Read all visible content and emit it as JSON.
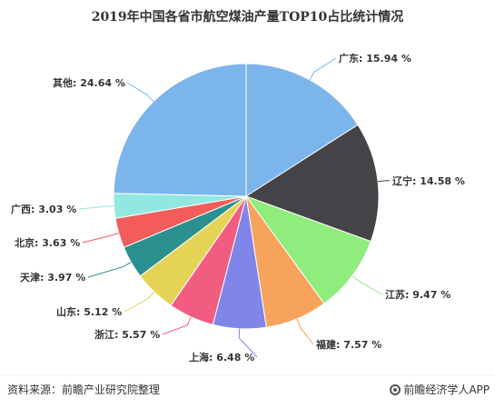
{
  "title": "2019年中国各省市航空煤油产量TOP10占比统计情况",
  "source": "资料来源：前瞻产业研究院整理",
  "brand": "前瞻经济学人APP",
  "watermark": "前瞻产业研究院",
  "chart_data": {
    "type": "pie",
    "title": "2019年中国各省市航空煤油产量TOP10占比统计情况",
    "unit": "%",
    "slices": [
      {
        "label": "广东",
        "value": 15.94,
        "display": "广东: 15.94 %",
        "color": "#7cb5ec"
      },
      {
        "label": "辽宁",
        "value": 14.58,
        "display": "辽宁: 14.58 %",
        "color": "#434348"
      },
      {
        "label": "江苏",
        "value": 9.47,
        "display": "江苏: 9.47 %",
        "color": "#90ed7d"
      },
      {
        "label": "福建",
        "value": 7.57,
        "display": "福建: 7.57 %",
        "color": "#f7a35c"
      },
      {
        "label": "上海",
        "value": 6.48,
        "display": "上海: 6.48 %",
        "color": "#8085e9"
      },
      {
        "label": "浙江",
        "value": 5.57,
        "display": "浙江: 5.57 %",
        "color": "#f15c80"
      },
      {
        "label": "山东",
        "value": 5.12,
        "display": "山东: 5.12 %",
        "color": "#e4d354"
      },
      {
        "label": "天津",
        "value": 3.97,
        "display": "天津: 3.97 %",
        "color": "#2b908f"
      },
      {
        "label": "北京",
        "value": 3.63,
        "display": "北京: 3.63 %",
        "color": "#f45b5b"
      },
      {
        "label": "广西",
        "value": 3.03,
        "display": "广西: 3.03 %",
        "color": "#91e8e1"
      },
      {
        "label": "其他",
        "value": 24.64,
        "display": "其他: 24.64 %",
        "color": "#7cb5ec"
      }
    ]
  }
}
